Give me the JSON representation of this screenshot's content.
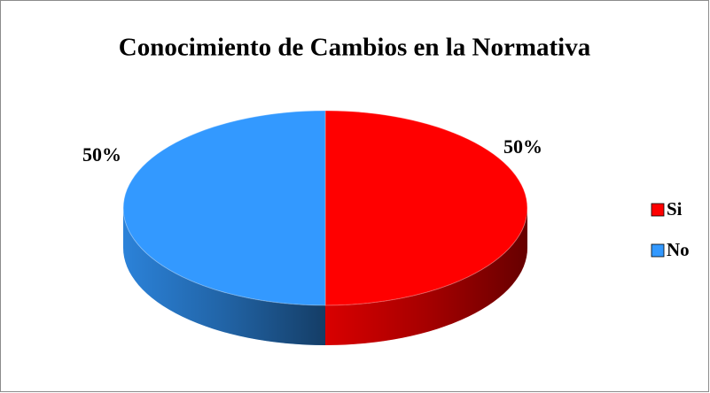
{
  "chart_data": {
    "type": "pie",
    "title": "Conocimiento de Cambios en la Normativa",
    "categories": [
      "Si",
      "No"
    ],
    "values": [
      50,
      50
    ],
    "value_labels": [
      "50%",
      "50%"
    ],
    "colors": [
      "#ff0000",
      "#3399ff"
    ],
    "legend": "right"
  }
}
